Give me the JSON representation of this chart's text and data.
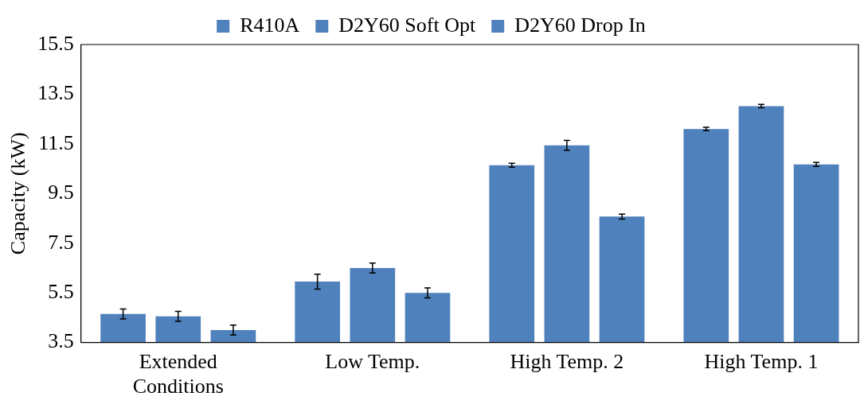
{
  "chart_data": {
    "type": "bar",
    "ylabel": "Capacity (kW)",
    "categories": [
      "Extended Conditions",
      "Low Temp.",
      "High Temp. 2",
      "High Temp. 1"
    ],
    "series": [
      {
        "name": "R410A",
        "color": "#4f81bd",
        "values": [
          4.65,
          5.95,
          10.64,
          12.1
        ],
        "errors": [
          0.2,
          0.3,
          0.08,
          0.07
        ]
      },
      {
        "name": "D2Y60 Soft Opt",
        "color": "#4f81bd",
        "values": [
          4.55,
          6.5,
          11.44,
          13.02
        ],
        "errors": [
          0.2,
          0.2,
          0.2,
          0.07
        ]
      },
      {
        "name": "D2Y60 Drop In",
        "color": "#4f81bd",
        "values": [
          4.0,
          5.5,
          8.57,
          10.67
        ],
        "errors": [
          0.2,
          0.2,
          0.1,
          0.08
        ]
      }
    ],
    "ylim": [
      3.5,
      15.5
    ],
    "yticks": [
      3.5,
      5.5,
      7.5,
      9.5,
      11.5,
      13.5,
      15.5
    ],
    "grid": false,
    "legend": "top"
  }
}
